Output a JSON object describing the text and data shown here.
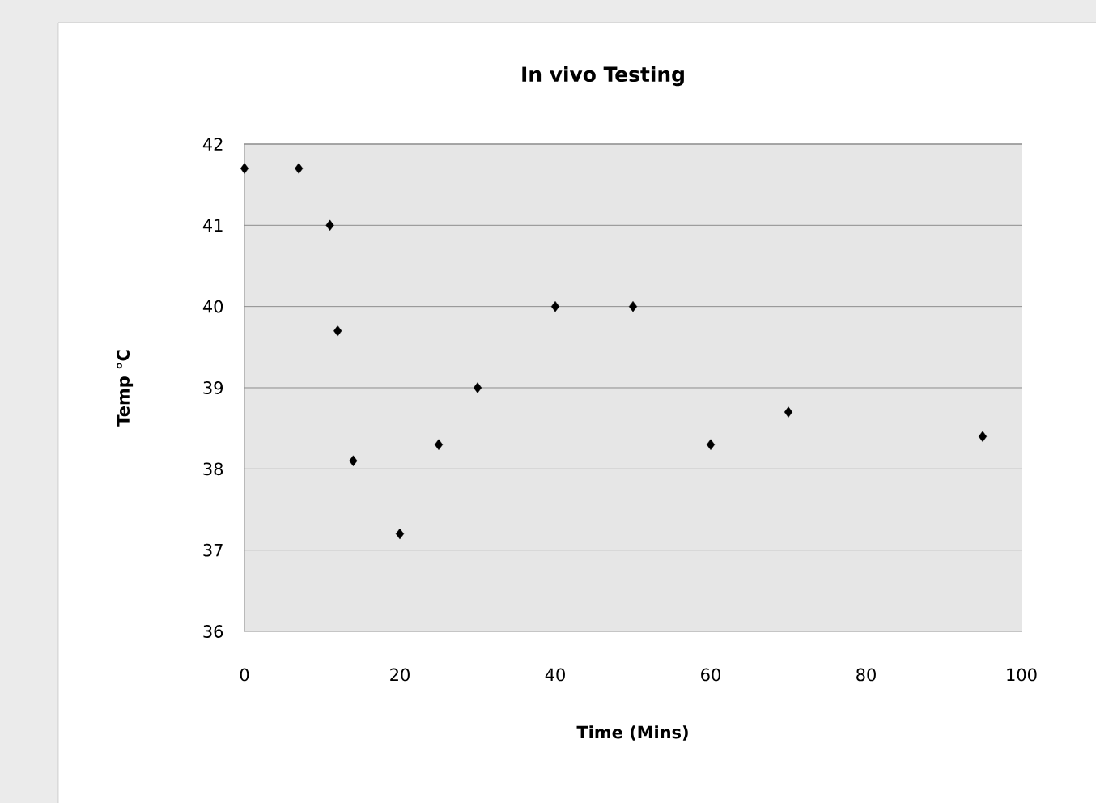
{
  "chart_data": {
    "type": "scatter",
    "title": "In vivo Testing",
    "xlabel": "Time (Mins)",
    "ylabel": "Temp °C",
    "x": [
      0,
      7,
      11,
      12,
      14,
      20,
      25,
      30,
      40,
      50,
      60,
      70,
      95
    ],
    "values": [
      41.7,
      41.7,
      41.0,
      39.7,
      38.1,
      37.2,
      38.3,
      39.0,
      40.0,
      40.0,
      38.3,
      38.7,
      38.4
    ],
    "color": "#000000",
    "marker": "diamond",
    "xlim": [
      0,
      100
    ],
    "xticks": [
      0,
      20,
      40,
      60,
      80,
      100
    ],
    "ylim": [
      36,
      42
    ],
    "yticks": [
      36,
      37,
      38,
      39,
      40,
      41,
      42
    ],
    "grid": "y"
  }
}
